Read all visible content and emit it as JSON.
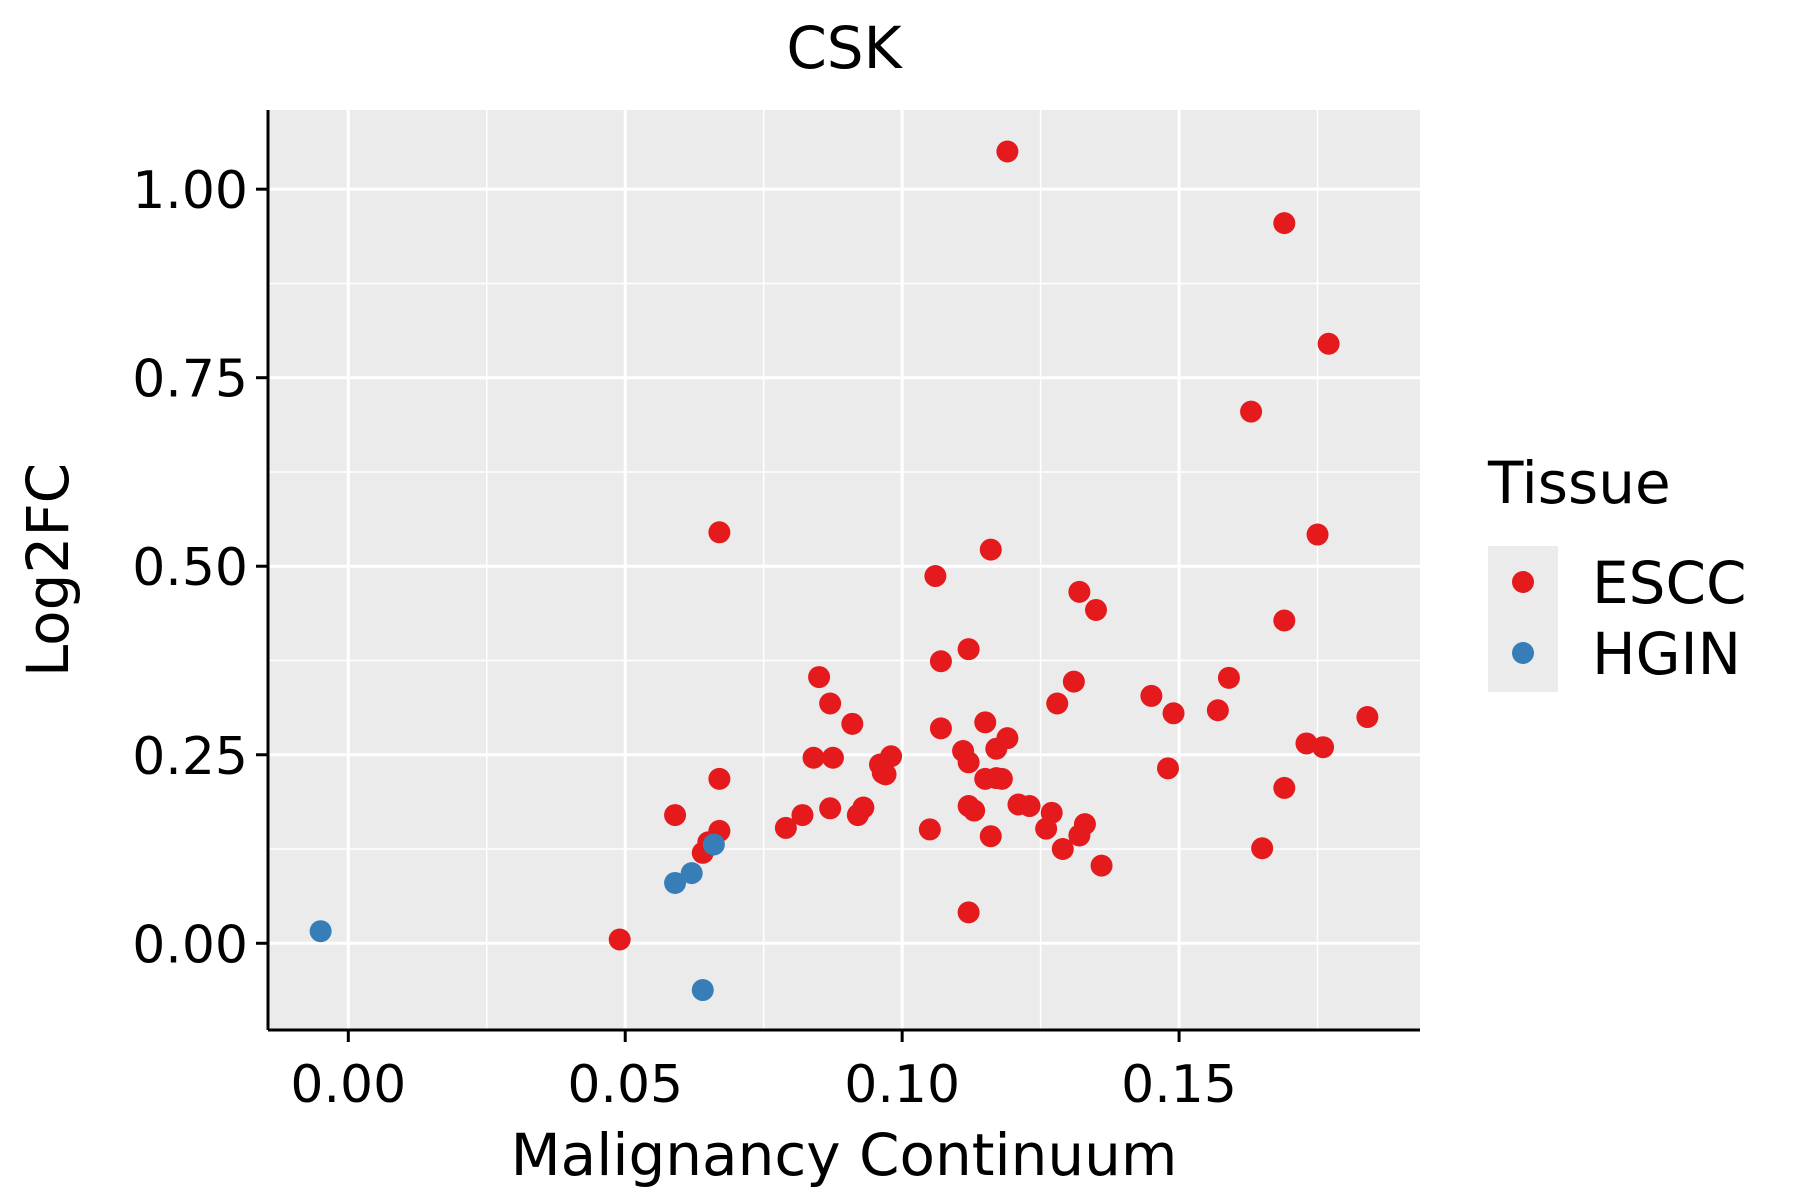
{
  "chart_data": {
    "type": "scatter",
    "title": "CSK",
    "xlabel": "Malignancy Continuum",
    "ylabel": "Log2FC",
    "xlim": [
      -0.0145,
      0.1935
    ],
    "ylim": [
      -0.115,
      1.105
    ],
    "x_ticks": [
      0.0,
      0.05,
      0.1,
      0.15
    ],
    "x_tick_labels": [
      "0.00",
      "0.05",
      "0.10",
      "0.15"
    ],
    "y_ticks": [
      0.0,
      0.25,
      0.5,
      0.75,
      1.0
    ],
    "y_tick_labels": [
      "0.00",
      "0.25",
      "0.50",
      "0.75",
      "1.00"
    ],
    "grid": true,
    "legend": {
      "title": "Tissue",
      "position": "right",
      "entries": [
        {
          "label": "ESCC",
          "color": "#E41A1C"
        },
        {
          "label": "HGIN",
          "color": "#377EB8"
        }
      ]
    },
    "series": [
      {
        "name": "ESCC",
        "color": "#E41A1C",
        "points": [
          [
            0.119,
            1.05
          ],
          [
            0.169,
            0.955
          ],
          [
            0.177,
            0.795
          ],
          [
            0.163,
            0.705
          ],
          [
            0.175,
            0.542
          ],
          [
            0.067,
            0.545
          ],
          [
            0.116,
            0.522
          ],
          [
            0.106,
            0.487
          ],
          [
            0.132,
            0.466
          ],
          [
            0.135,
            0.442
          ],
          [
            0.169,
            0.428
          ],
          [
            0.112,
            0.39
          ],
          [
            0.107,
            0.374
          ],
          [
            0.085,
            0.353
          ],
          [
            0.159,
            0.352
          ],
          [
            0.131,
            0.347
          ],
          [
            0.145,
            0.328
          ],
          [
            0.087,
            0.318
          ],
          [
            0.128,
            0.318
          ],
          [
            0.149,
            0.305
          ],
          [
            0.157,
            0.309
          ],
          [
            0.184,
            0.3
          ],
          [
            0.091,
            0.291
          ],
          [
            0.115,
            0.293
          ],
          [
            0.107,
            0.285
          ],
          [
            0.119,
            0.272
          ],
          [
            0.173,
            0.265
          ],
          [
            0.176,
            0.26
          ],
          [
            0.111,
            0.255
          ],
          [
            0.117,
            0.258
          ],
          [
            0.098,
            0.248
          ],
          [
            0.084,
            0.246
          ],
          [
            0.0875,
            0.246
          ],
          [
            0.112,
            0.24
          ],
          [
            0.096,
            0.237
          ],
          [
            0.148,
            0.232
          ],
          [
            0.097,
            0.224
          ],
          [
            0.0965,
            0.226
          ],
          [
            0.067,
            0.218
          ],
          [
            0.115,
            0.218
          ],
          [
            0.117,
            0.219
          ],
          [
            0.118,
            0.218
          ],
          [
            0.169,
            0.206
          ],
          [
            0.121,
            0.184
          ],
          [
            0.123,
            0.182
          ],
          [
            0.112,
            0.182
          ],
          [
            0.113,
            0.176
          ],
          [
            0.093,
            0.18
          ],
          [
            0.087,
            0.179
          ],
          [
            0.092,
            0.17
          ],
          [
            0.082,
            0.17
          ],
          [
            0.059,
            0.17
          ],
          [
            0.127,
            0.173
          ],
          [
            0.133,
            0.158
          ],
          [
            0.079,
            0.153
          ],
          [
            0.105,
            0.151
          ],
          [
            0.126,
            0.152
          ],
          [
            0.067,
            0.149
          ],
          [
            0.132,
            0.143
          ],
          [
            0.116,
            0.142
          ],
          [
            0.065,
            0.134
          ],
          [
            0.129,
            0.125
          ],
          [
            0.165,
            0.126
          ],
          [
            0.064,
            0.12
          ],
          [
            0.136,
            0.103
          ],
          [
            0.112,
            0.041
          ],
          [
            0.049,
            0.005
          ]
        ]
      },
      {
        "name": "HGIN",
        "color": "#377EB8",
        "points": [
          [
            -0.005,
            0.016
          ],
          [
            0.059,
            0.08
          ],
          [
            0.062,
            0.093
          ],
          [
            0.066,
            0.131
          ],
          [
            0.064,
            -0.062
          ]
        ]
      }
    ]
  }
}
